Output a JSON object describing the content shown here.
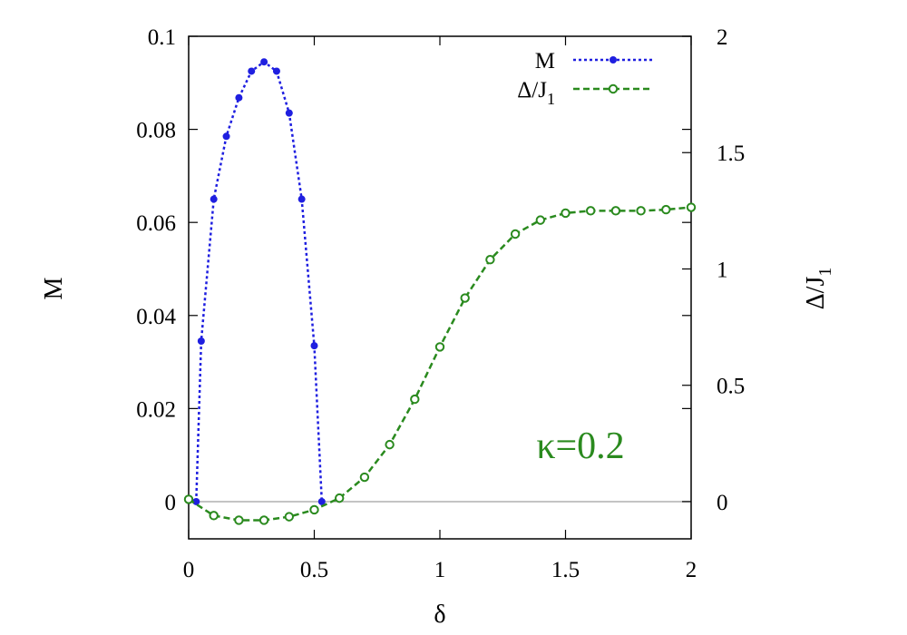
{
  "chart_data": {
    "type": "line",
    "xlabel": "δ",
    "ylabel": "M",
    "y2label": "Δ/J",
    "y2label_subscript": "1",
    "xlim": [
      0,
      2
    ],
    "ylim": [
      -0.008,
      0.1
    ],
    "y2lim": [
      -0.16,
      2.0
    ],
    "xticks": [
      "0",
      "0.5",
      "1",
      "1.5",
      "2"
    ],
    "yticks": [
      "0",
      "0.02",
      "0.04",
      "0.06",
      "0.08",
      "0.1"
    ],
    "y2ticks": [
      "0",
      "0.5",
      "1",
      "1.5",
      "2"
    ],
    "grid": false,
    "zero_line": true,
    "legend_position": "top-right",
    "annotation": {
      "text": "κ=0.2",
      "color": "#2a8a1e"
    },
    "series": [
      {
        "name": "M",
        "name_subscript": "",
        "axis": "left",
        "color": "#1f1fe0",
        "marker": "filled-circle",
        "line_style": "dotted",
        "x": [
          0.03,
          0.05,
          0.1,
          0.15,
          0.2,
          0.25,
          0.3,
          0.35,
          0.4,
          0.45,
          0.5,
          0.53
        ],
        "y": [
          0.0,
          0.0345,
          0.065,
          0.0785,
          0.0868,
          0.0925,
          0.0945,
          0.0925,
          0.0835,
          0.065,
          0.0335,
          0.0
        ]
      },
      {
        "name": "Δ/J",
        "name_subscript": "1",
        "axis": "right",
        "color": "#2a8a1e",
        "marker": "open-circle",
        "line_style": "dashed",
        "x": [
          0.0,
          0.1,
          0.2,
          0.3,
          0.4,
          0.5,
          0.6,
          0.7,
          0.8,
          0.9,
          1.0,
          1.1,
          1.2,
          1.3,
          1.4,
          1.5,
          1.6,
          1.7,
          1.8,
          1.9,
          2.0
        ],
        "y": [
          0.01,
          -0.06,
          -0.08,
          -0.08,
          -0.065,
          -0.035,
          0.015,
          0.105,
          0.245,
          0.44,
          0.665,
          0.875,
          1.04,
          1.15,
          1.21,
          1.24,
          1.25,
          1.25,
          1.25,
          1.255,
          1.265
        ]
      }
    ]
  }
}
